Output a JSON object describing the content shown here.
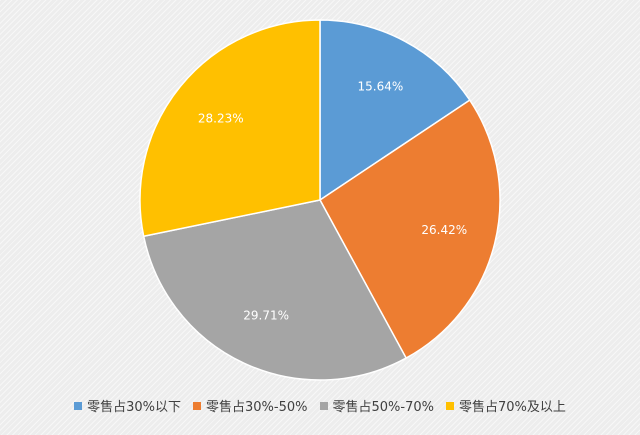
{
  "chart_data": {
    "type": "pie",
    "start_angle_deg": 0,
    "direction": "clockwise",
    "legend_position": "bottom",
    "slices": [
      {
        "label": "零售占30%以下",
        "value": 15.64,
        "display": "15.64%",
        "color": "#5b9bd5"
      },
      {
        "label": "零售占30%-50%",
        "value": 26.42,
        "display": "26.42%",
        "color": "#ed7d31"
      },
      {
        "label": "零售占50%-70%",
        "value": 29.71,
        "display": "29.71%",
        "color": "#a5a5a5"
      },
      {
        "label": "零售占70%及以上",
        "value": 28.23,
        "display": "28.23%",
        "color": "#ffc000"
      }
    ]
  }
}
